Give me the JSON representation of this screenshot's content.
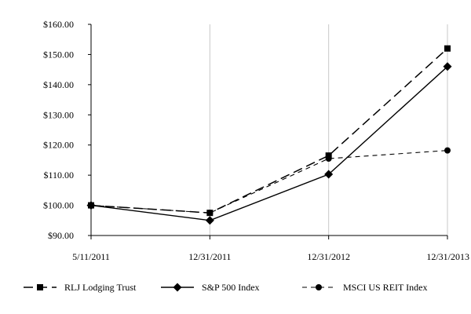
{
  "chart_data": {
    "type": "line",
    "title": "",
    "xlabel": "",
    "ylabel": "",
    "categories": [
      "5/11/2011",
      "12/31/2011",
      "12/31/2012",
      "12/31/2013"
    ],
    "y_tick_labels": [
      "$90.00",
      "$100.00",
      "$110.00",
      "$120.00",
      "$130.00",
      "$140.00",
      "$150.00",
      "$160.00"
    ],
    "ylim": [
      90,
      160
    ],
    "grid": "vertical",
    "legend_position": "bottom",
    "series": [
      {
        "name": "RLJ Lodging Trust",
        "values": [
          100.0,
          97.5,
          116.5,
          152.0
        ],
        "marker": "square",
        "dash": "long-dash",
        "color": "#000000"
      },
      {
        "name": "S&P 500 Index",
        "values": [
          100.0,
          95.0,
          110.3,
          146.0
        ],
        "marker": "diamond",
        "dash": "solid",
        "color": "#000000"
      },
      {
        "name": "MSCI US REIT Index",
        "values": [
          100.0,
          97.5,
          115.5,
          118.2
        ],
        "marker": "circle",
        "dash": "short-dash",
        "color": "#000000"
      }
    ]
  }
}
